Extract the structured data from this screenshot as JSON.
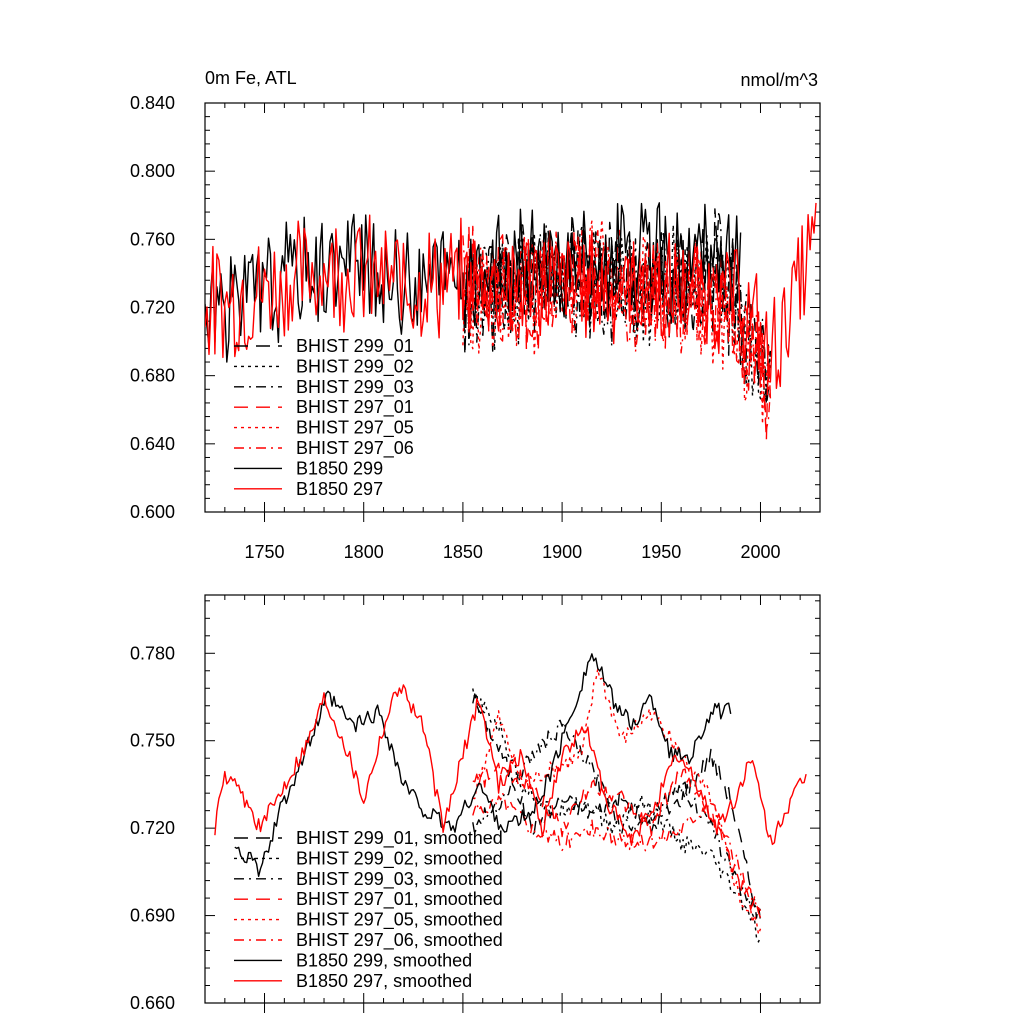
{
  "chart_data": [
    {
      "type": "line",
      "panel": "top",
      "title": "0m Fe, ATL",
      "units": "nmol/m^3",
      "xlim": [
        1720,
        2030
      ],
      "ylim": [
        0.6,
        0.84
      ],
      "xticks": [
        1750,
        1800,
        1850,
        1900,
        1950,
        2000
      ],
      "yticks": [
        0.6,
        0.64,
        0.68,
        0.72,
        0.76,
        0.8,
        0.84
      ],
      "ytick_labels": [
        "0.600",
        "0.640",
        "0.680",
        "0.720",
        "0.760",
        "0.800",
        "0.840"
      ],
      "legend_position": "lower-left",
      "series": [
        {
          "name": "BHIST 299_01",
          "color": "#000000",
          "dash": "long-dash",
          "x_start": 1850,
          "x_end": 2005,
          "mean": 0.735,
          "amp": 0.03,
          "seed": 11,
          "anchors": [
            [
              1850,
              0.72
            ],
            [
              1880,
              0.74
            ],
            [
              1910,
              0.745
            ],
            [
              1950,
              0.735
            ],
            [
              1980,
              0.74
            ],
            [
              2005,
              0.68
            ]
          ]
        },
        {
          "name": "BHIST 299_02",
          "color": "#000000",
          "dash": "dot",
          "x_start": 1850,
          "x_end": 2005,
          "mean": 0.735,
          "amp": 0.03,
          "seed": 12,
          "anchors": [
            [
              1850,
              0.72
            ],
            [
              1885,
              0.74
            ],
            [
              1910,
              0.74
            ],
            [
              1950,
              0.73
            ],
            [
              1980,
              0.735
            ],
            [
              2005,
              0.67
            ]
          ]
        },
        {
          "name": "BHIST 299_03",
          "color": "#000000",
          "dash": "dash-dot",
          "x_start": 1850,
          "x_end": 2005,
          "mean": 0.735,
          "amp": 0.03,
          "seed": 13,
          "anchors": [
            [
              1850,
              0.725
            ],
            [
              1885,
              0.745
            ],
            [
              1910,
              0.735
            ],
            [
              1950,
              0.73
            ],
            [
              1980,
              0.74
            ],
            [
              2005,
              0.68
            ]
          ]
        },
        {
          "name": "BHIST 297_01",
          "color": "#ff0000",
          "dash": "long-dash",
          "x_start": 1850,
          "x_end": 2005,
          "mean": 0.73,
          "amp": 0.03,
          "seed": 21,
          "anchors": [
            [
              1850,
              0.735
            ],
            [
              1885,
              0.73
            ],
            [
              1915,
              0.74
            ],
            [
              1950,
              0.73
            ],
            [
              1980,
              0.725
            ],
            [
              2005,
              0.67
            ]
          ]
        },
        {
          "name": "BHIST 297_05",
          "color": "#ff0000",
          "dash": "dot",
          "x_start": 1850,
          "x_end": 2005,
          "mean": 0.73,
          "amp": 0.03,
          "seed": 22,
          "anchors": [
            [
              1850,
              0.73
            ],
            [
              1885,
              0.725
            ],
            [
              1915,
              0.745
            ],
            [
              1950,
              0.73
            ],
            [
              1980,
              0.72
            ],
            [
              2005,
              0.67
            ]
          ]
        },
        {
          "name": "BHIST 297_06",
          "color": "#ff0000",
          "dash": "dash-dot",
          "x_start": 1850,
          "x_end": 2005,
          "mean": 0.73,
          "amp": 0.03,
          "seed": 23,
          "anchors": [
            [
              1850,
              0.73
            ],
            [
              1885,
              0.73
            ],
            [
              1915,
              0.74
            ],
            [
              1950,
              0.725
            ],
            [
              1980,
              0.725
            ],
            [
              2005,
              0.675
            ]
          ]
        },
        {
          "name": "B1850 299",
          "color": "#000000",
          "dash": "solid",
          "x_start": 1720,
          "x_end": 1990,
          "mean": 0.74,
          "amp": 0.03,
          "seed": 31,
          "anchors": [
            [
              1720,
              0.72
            ],
            [
              1750,
              0.73
            ],
            [
              1785,
              0.75
            ],
            [
              1815,
              0.735
            ],
            [
              1850,
              0.74
            ],
            [
              1900,
              0.745
            ],
            [
              1940,
              0.745
            ],
            [
              1990,
              0.745
            ]
          ]
        },
        {
          "name": "B1850 297",
          "color": "#ff0000",
          "dash": "solid",
          "x_start": 1720,
          "x_end": 2028,
          "mean": 0.735,
          "amp": 0.03,
          "seed": 32,
          "anchors": [
            [
              1720,
              0.72
            ],
            [
              1750,
              0.73
            ],
            [
              1785,
              0.745
            ],
            [
              1815,
              0.735
            ],
            [
              1850,
              0.735
            ],
            [
              1900,
              0.735
            ],
            [
              1950,
              0.73
            ],
            [
              1990,
              0.725
            ],
            [
              2005,
              0.69
            ],
            [
              2028,
              0.76
            ]
          ]
        }
      ]
    },
    {
      "type": "line",
      "panel": "bottom",
      "xlim": [
        1720,
        2030
      ],
      "ylim": [
        0.66,
        0.8
      ],
      "yticks": [
        0.66,
        0.69,
        0.72,
        0.75,
        0.78
      ],
      "ytick_labels": [
        "0.660",
        "0.690",
        "0.720",
        "0.750",
        "0.780"
      ],
      "legend_position": "lower-left",
      "series": [
        {
          "name": "BHIST 299_01, smoothed",
          "color": "#000000",
          "dash": "long-dash",
          "x_start": 1855,
          "x_end": 2000,
          "anchors": [
            [
              1855,
              0.765
            ],
            [
              1870,
              0.745
            ],
            [
              1885,
              0.72
            ],
            [
              1900,
              0.73
            ],
            [
              1915,
              0.725
            ],
            [
              1930,
              0.73
            ],
            [
              1945,
              0.72
            ],
            [
              1960,
              0.73
            ],
            [
              1975,
              0.745
            ],
            [
              1985,
              0.73
            ],
            [
              1995,
              0.7
            ],
            [
              2000,
              0.69
            ]
          ]
        },
        {
          "name": "BHIST 299_02, smoothed",
          "color": "#000000",
          "dash": "dot",
          "x_start": 1855,
          "x_end": 2000,
          "anchors": [
            [
              1855,
              0.765
            ],
            [
              1868,
              0.755
            ],
            [
              1880,
              0.735
            ],
            [
              1895,
              0.725
            ],
            [
              1910,
              0.73
            ],
            [
              1925,
              0.72
            ],
            [
              1940,
              0.73
            ],
            [
              1960,
              0.715
            ],
            [
              1975,
              0.71
            ],
            [
              1985,
              0.7
            ],
            [
              1995,
              0.69
            ],
            [
              2000,
              0.68
            ]
          ]
        },
        {
          "name": "BHIST 299_03, smoothed",
          "color": "#000000",
          "dash": "dash-dot",
          "x_start": 1855,
          "x_end": 2000,
          "anchors": [
            [
              1855,
              0.72
            ],
            [
              1870,
              0.73
            ],
            [
              1885,
              0.745
            ],
            [
              1900,
              0.755
            ],
            [
              1915,
              0.74
            ],
            [
              1930,
              0.72
            ],
            [
              1945,
              0.725
            ],
            [
              1960,
              0.735
            ],
            [
              1975,
              0.72
            ],
            [
              1990,
              0.7
            ],
            [
              2000,
              0.69
            ]
          ]
        },
        {
          "name": "BHIST 297_01, smoothed",
          "color": "#ff0000",
          "dash": "long-dash",
          "x_start": 1855,
          "x_end": 2000,
          "anchors": [
            [
              1855,
              0.735
            ],
            [
              1870,
              0.74
            ],
            [
              1885,
              0.735
            ],
            [
              1900,
              0.72
            ],
            [
              1915,
              0.735
            ],
            [
              1930,
              0.73
            ],
            [
              1945,
              0.72
            ],
            [
              1960,
              0.74
            ],
            [
              1975,
              0.725
            ],
            [
              1990,
              0.7
            ],
            [
              2000,
              0.69
            ]
          ]
        },
        {
          "name": "BHIST 297_05, smoothed",
          "color": "#ff0000",
          "dash": "dot",
          "x_start": 1855,
          "x_end": 2000,
          "anchors": [
            [
              1855,
              0.73
            ],
            [
              1868,
              0.758
            ],
            [
              1880,
              0.735
            ],
            [
              1895,
              0.74
            ],
            [
              1910,
              0.745
            ],
            [
              1918,
              0.775
            ],
            [
              1930,
              0.75
            ],
            [
              1945,
              0.76
            ],
            [
              1960,
              0.745
            ],
            [
              1975,
              0.73
            ],
            [
              1990,
              0.695
            ],
            [
              2000,
              0.685
            ]
          ]
        },
        {
          "name": "BHIST 297_06, smoothed",
          "color": "#ff0000",
          "dash": "dash-dot",
          "x_start": 1855,
          "x_end": 2000,
          "anchors": [
            [
              1855,
              0.725
            ],
            [
              1870,
              0.73
            ],
            [
              1885,
              0.72
            ],
            [
              1900,
              0.715
            ],
            [
              1915,
              0.72
            ],
            [
              1930,
              0.715
            ],
            [
              1945,
              0.715
            ],
            [
              1960,
              0.72
            ],
            [
              1975,
              0.73
            ],
            [
              1990,
              0.705
            ],
            [
              2000,
              0.69
            ]
          ]
        },
        {
          "name": "B1850 299, smoothed",
          "color": "#000000",
          "dash": "solid",
          "x_start": 1735,
          "x_end": 1985,
          "anchors": [
            [
              1735,
              0.715
            ],
            [
              1748,
              0.705
            ],
            [
              1760,
              0.73
            ],
            [
              1770,
              0.745
            ],
            [
              1782,
              0.765
            ],
            [
              1795,
              0.755
            ],
            [
              1808,
              0.76
            ],
            [
              1820,
              0.735
            ],
            [
              1832,
              0.725
            ],
            [
              1845,
              0.72
            ],
            [
              1858,
              0.735
            ],
            [
              1870,
              0.72
            ],
            [
              1885,
              0.725
            ],
            [
              1895,
              0.74
            ],
            [
              1905,
              0.76
            ],
            [
              1915,
              0.78
            ],
            [
              1925,
              0.765
            ],
            [
              1935,
              0.755
            ],
            [
              1945,
              0.765
            ],
            [
              1955,
              0.745
            ],
            [
              1965,
              0.745
            ],
            [
              1975,
              0.76
            ],
            [
              1985,
              0.76
            ]
          ]
        },
        {
          "name": "B1850 297, smoothed",
          "color": "#ff0000",
          "dash": "solid",
          "x_start": 1725,
          "x_end": 2023,
          "anchors": [
            [
              1725,
              0.72
            ],
            [
              1730,
              0.738
            ],
            [
              1740,
              0.73
            ],
            [
              1748,
              0.72
            ],
            [
              1760,
              0.735
            ],
            [
              1772,
              0.75
            ],
            [
              1780,
              0.765
            ],
            [
              1790,
              0.75
            ],
            [
              1800,
              0.73
            ],
            [
              1810,
              0.755
            ],
            [
              1818,
              0.77
            ],
            [
              1830,
              0.755
            ],
            [
              1840,
              0.72
            ],
            [
              1850,
              0.745
            ],
            [
              1858,
              0.765
            ],
            [
              1868,
              0.735
            ],
            [
              1880,
              0.745
            ],
            [
              1890,
              0.72
            ],
            [
              1900,
              0.745
            ],
            [
              1912,
              0.755
            ],
            [
              1922,
              0.73
            ],
            [
              1935,
              0.715
            ],
            [
              1948,
              0.73
            ],
            [
              1958,
              0.745
            ],
            [
              1968,
              0.735
            ],
            [
              1978,
              0.72
            ],
            [
              1988,
              0.73
            ],
            [
              1995,
              0.745
            ],
            [
              2005,
              0.715
            ],
            [
              2012,
              0.725
            ],
            [
              2023,
              0.738
            ]
          ]
        }
      ]
    }
  ]
}
